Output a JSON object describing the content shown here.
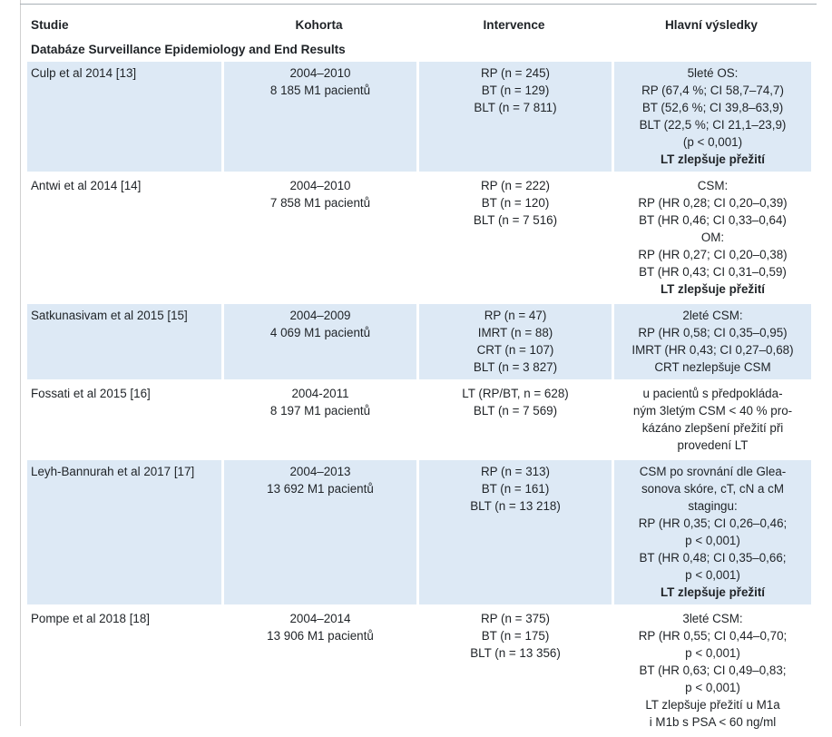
{
  "headers": [
    "Studie",
    "Kohorta",
    "Intervence",
    "Hlavní výsledky"
  ],
  "section_title": "Databáze Surveillance Epidemiology and End Results",
  "rows": [
    {
      "study": "Culp et al 2014 [13]",
      "cohort": [
        "2004–2010",
        "8 185 M1 pacientů"
      ],
      "intervention": [
        "RP (n = 245)",
        "BT (n = 129)",
        "BLT (n = 7 811)"
      ],
      "results": [
        "5leté OS:",
        "RP (67,4 %; CI 58,7–74,7)",
        "BT (52,6 %; CI 39,8–63,9)",
        "BLT (22,5 %; CI 21,1–23,9)",
        "(p < 0,001)"
      ],
      "results_bold": "LT zlepšuje přežití"
    },
    {
      "study": "Antwi et al 2014 [14]",
      "cohort": [
        "2004–2010",
        "7 858 M1 pacientů"
      ],
      "intervention": [
        "RP (n = 222)",
        "BT (n = 120)",
        "BLT (n = 7 516)"
      ],
      "results": [
        "CSM:",
        "RP (HR 0,28; CI 0,20–0,39)",
        "BT (HR 0,46; CI 0,33–0,64)",
        "OM:",
        "RP (HR 0,27; CI 0,20–0,38)",
        "BT (HR 0,43; CI 0,31–0,59)"
      ],
      "results_bold": "LT zlepšuje přežití"
    },
    {
      "study": "Satkunasivam et al 2015 [15]",
      "cohort": [
        "2004–2009",
        "4 069 M1 pacientů"
      ],
      "intervention": [
        "RP (n = 47)",
        "IMRT (n = 88)",
        "CRT (n = 107)",
        "BLT (n = 3 827)"
      ],
      "results": [
        "2leté CSM:",
        "RP (HR 0,58; CI 0,35–0,95)",
        "IMRT (HR 0,43; CI 0,27–0,68)",
        "CRT nezlepšuje CSM"
      ],
      "results_bold": ""
    },
    {
      "study": "Fossati et al 2015 [16]",
      "cohort": [
        "2004-2011",
        "8 197 M1 pacientů"
      ],
      "intervention": [
        "LT (RP/BT, n = 628)",
        "BLT (n = 7 569)"
      ],
      "results": [
        "u pacientů s předpokláda-",
        "ným 3letým CSM < 40 % pro-",
        "kázáno zlepšení přežití při",
        "provedení LT"
      ],
      "results_bold": ""
    },
    {
      "study": "Leyh-Bannurah et al 2017 [17]",
      "cohort": [
        "2004–2013",
        "13 692 M1 pacientů"
      ],
      "intervention": [
        "RP (n = 313)",
        "BT (n = 161)",
        "BLT (n = 13 218)"
      ],
      "results": [
        "CSM po srovnání dle Glea-",
        "sonova skóre, cT, cN a cM",
        "stagingu:",
        "RP (HR 0,35; CI 0,26–0,46;",
        "p < 0,001)",
        "BT (HR 0,48; CI 0,35–0,66;",
        "p < 0,001)"
      ],
      "results_bold": "LT zlepšuje přežití"
    },
    {
      "study": "Pompe et al 2018 [18]",
      "cohort": [
        "2004–2014",
        "13 906 M1 pacientů"
      ],
      "intervention": [
        "RP (n = 375)",
        "BT (n = 175)",
        "BLT (n = 13 356)"
      ],
      "results": [
        "3leté CSM:",
        "RP (HR 0,55; CI 0,44–0,70;",
        "p < 0,001)",
        "BT (HR 0,63; CI 0,49–0,83;",
        "p < 0,001)",
        "LT zlepšuje přežití u M1a",
        "i M1b s PSA < 60 ng/ml"
      ],
      "results_bold": ""
    }
  ],
  "colors": {
    "shade": "#dde9f5",
    "text": "#1f2327"
  }
}
